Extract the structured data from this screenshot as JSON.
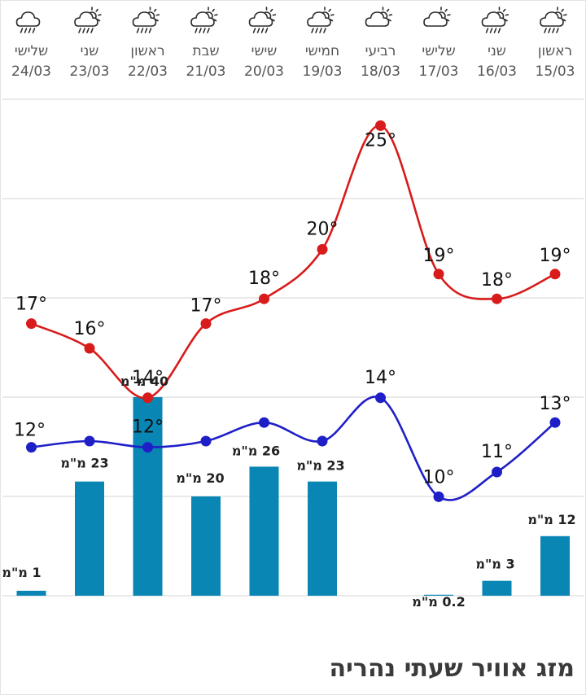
{
  "page": {
    "title": "מזג אוויר שעתי נהריה"
  },
  "colors": {
    "high": "#d81b1b",
    "low": "#1f1fc8",
    "bar": "#0a86b4",
    "grid": "#e2e2e2"
  },
  "chart_data": {
    "type": "line+bar",
    "title": "",
    "categories": [
      {
        "day": "ראשון",
        "date": "15/03",
        "icon": "partly-cloudy-rain-icon"
      },
      {
        "day": "שני",
        "date": "16/03",
        "icon": "partly-cloudy-rain-icon"
      },
      {
        "day": "שלישי",
        "date": "17/03",
        "icon": "partly-cloudy-icon"
      },
      {
        "day": "רביעי",
        "date": "18/03",
        "icon": "partly-cloudy-icon"
      },
      {
        "day": "חמישי",
        "date": "19/03",
        "icon": "partly-cloudy-rain-icon"
      },
      {
        "day": "שישי",
        "date": "20/03",
        "icon": "partly-cloudy-rain-icon"
      },
      {
        "day": "שבת",
        "date": "21/03",
        "icon": "partly-cloudy-rain-icon"
      },
      {
        "day": "ראשון",
        "date": "22/03",
        "icon": "partly-cloudy-rain-icon"
      },
      {
        "day": "שני",
        "date": "23/03",
        "icon": "partly-cloudy-rain-icon"
      },
      {
        "day": "שלישי",
        "date": "24/03",
        "icon": "rain-cloud-icon"
      }
    ],
    "series": [
      {
        "key": "high",
        "values": [
          19,
          18,
          19,
          25,
          20,
          18,
          17,
          14,
          16,
          17
        ],
        "labels": [
          "19°",
          "18°",
          "19°",
          "25°",
          "20°",
          "18°",
          "17°",
          "14°",
          "16°",
          "17°"
        ]
      },
      {
        "key": "low",
        "values": [
          13,
          11,
          10,
          14,
          12.25,
          13,
          12.25,
          12,
          12.25,
          12
        ],
        "labels": [
          "13°",
          "11°",
          "10°",
          "14°",
          "",
          "",
          "",
          "12°",
          "",
          "12°"
        ]
      },
      {
        "key": "precip",
        "values": [
          12,
          3,
          0.2,
          null,
          23,
          26,
          20,
          40,
          23,
          1
        ],
        "labels": [
          "12 מ\"מ",
          "3 מ\"מ",
          "0.2 מ\"מ",
          "",
          "23 מ\"מ",
          "26 מ\"מ",
          "20 מ\"מ",
          "40 מ\"מ",
          "23 מ\"מ",
          "1 מ\"מ"
        ]
      }
    ],
    "grid": true
  }
}
